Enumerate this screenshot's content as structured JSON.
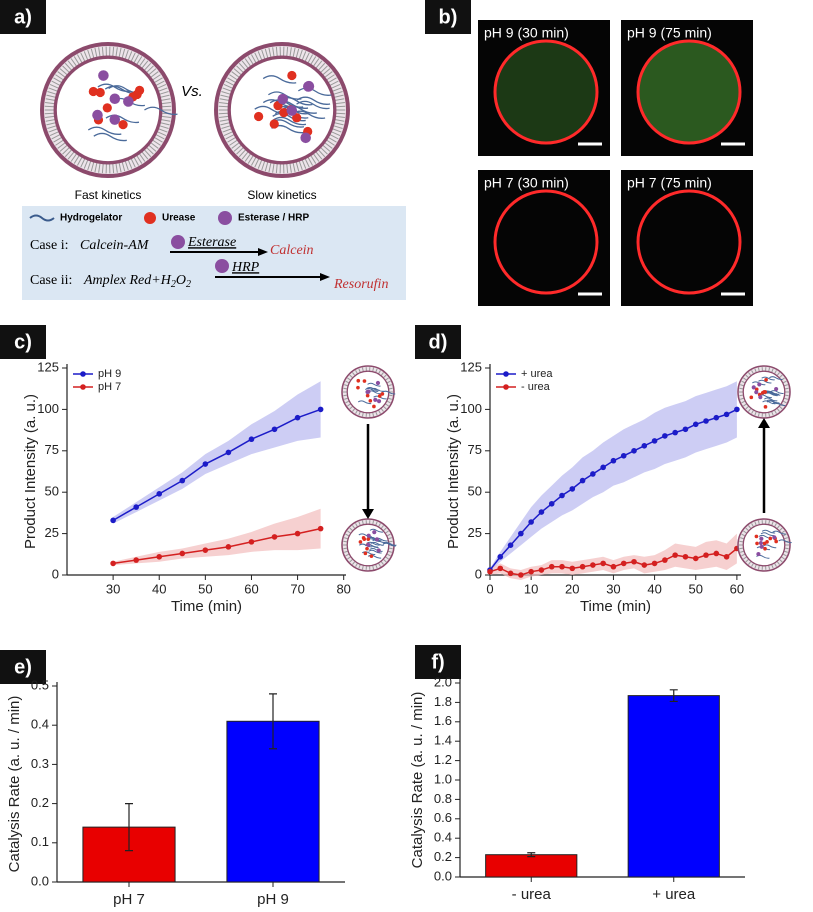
{
  "diagram": {
    "label": "a)",
    "vs": "Vs.",
    "left_caption": "Fast kinetics",
    "right_caption": "Slow kinetics",
    "legend": [
      "Hydrogelator",
      "Urease",
      "Esterase / HRP"
    ],
    "case_i": {
      "prefix": "Case i:",
      "substrate": "Calcein-AM",
      "enzyme": "Esterase",
      "product": "Calcein"
    },
    "case_ii": {
      "prefix": "Case ii:",
      "substrate_parts": [
        "Amplex Red+H",
        "2",
        "O",
        "2"
      ],
      "enzyme": "HRP",
      "product": "Resorufin"
    }
  },
  "images": {
    "label": "b)",
    "captions": [
      "pH 9 (30 min)",
      "pH 9 (75 min)",
      "pH 7 (30 min)",
      "pH 7 (75 min)"
    ]
  },
  "chart_data": [
    {
      "type": "line",
      "panel_label": "c)",
      "x_label": "Time (min)",
      "y_label": "Product Intensity (a. u.)",
      "x": [
        30,
        35,
        40,
        45,
        50,
        55,
        60,
        65,
        70,
        75
      ],
      "series": [
        {
          "name": "pH 9",
          "color": "#1c1cc8",
          "band_color": "#b8b8f0",
          "values": [
            33,
            41,
            49,
            57,
            67,
            74,
            82,
            88,
            95,
            100
          ],
          "error": [
            2,
            3,
            4,
            5,
            6,
            7,
            9,
            11,
            14,
            17
          ]
        },
        {
          "name": "pH 7",
          "color": "#d42020",
          "band_color": "#f2bcbc",
          "values": [
            7,
            9,
            11,
            13,
            15,
            17,
            20,
            23,
            25,
            28
          ],
          "error": [
            1,
            2,
            3,
            3,
            4,
            5,
            6,
            8,
            10,
            12
          ]
        }
      ],
      "xlim": [
        20,
        80.5
      ],
      "xticks": [
        30,
        40,
        50,
        60,
        70,
        80
      ],
      "ylim": [
        0,
        125
      ],
      "yticks": [
        0,
        25,
        50,
        75,
        100,
        125
      ],
      "legend": "upper-left"
    },
    {
      "type": "line",
      "panel_label": "d)",
      "x_label": "Time (min)",
      "y_label": "Product Intensity (a. u.)",
      "x": [
        0,
        2.5,
        5,
        7.5,
        10,
        12.5,
        15,
        17.5,
        20,
        22.5,
        25,
        27.5,
        30,
        32.5,
        35,
        37.5,
        40,
        42.5,
        45,
        47.5,
        50,
        52.5,
        55,
        57.5,
        60
      ],
      "series": [
        {
          "name": "+ urea",
          "color": "#1c1cc8",
          "band_color": "#b8b8f0",
          "values": [
            3,
            11,
            18,
            25,
            32,
            38,
            43,
            48,
            52,
            57,
            61,
            65,
            69,
            72,
            75,
            78,
            81,
            84,
            86,
            88,
            91,
            93,
            95,
            97,
            100
          ],
          "error": [
            1,
            3,
            5,
            7,
            9,
            10,
            11,
            12,
            13,
            14,
            14,
            15,
            15,
            16,
            16,
            16,
            17,
            17,
            17,
            17,
            17,
            17,
            17,
            17,
            17
          ]
        },
        {
          "name": "- urea",
          "color": "#d42020",
          "band_color": "#f2bcbc",
          "values": [
            2,
            4,
            1,
            0,
            2,
            3,
            5,
            5,
            4,
            5,
            6,
            7,
            5,
            7,
            8,
            6,
            7,
            9,
            12,
            11,
            10,
            12,
            13,
            11,
            16
          ],
          "error": [
            2,
            3,
            3,
            3,
            3,
            3,
            4,
            4,
            4,
            4,
            4,
            4,
            4,
            4,
            4,
            5,
            5,
            6,
            7,
            7,
            7,
            8,
            8,
            8,
            9
          ]
        }
      ],
      "xlim": [
        0,
        61
      ],
      "xticks": [
        0,
        10,
        20,
        30,
        40,
        50,
        60
      ],
      "ylim": [
        0,
        125
      ],
      "yticks": [
        0,
        25,
        50,
        75,
        100,
        125
      ],
      "legend": "upper-left"
    },
    {
      "type": "bar",
      "panel_label": "e)",
      "y_label": "Catalysis Rate (a. u. / min)",
      "categories": [
        "pH 7",
        "pH 9"
      ],
      "values": [
        0.14,
        0.41
      ],
      "error": [
        0.06,
        0.07
      ],
      "colors": [
        "#e80000",
        "#0000ff"
      ],
      "ylim": [
        0,
        0.5
      ],
      "yticks": [
        {
          "value": 0,
          "label": "0.0"
        },
        0.1,
        0.2,
        0.3,
        0.4,
        0.5
      ]
    },
    {
      "type": "bar",
      "panel_label": "f)",
      "y_label": "Catalysis Rate (a. u. / min)",
      "categories": [
        "- urea",
        "+ urea"
      ],
      "values": [
        0.23,
        1.87
      ],
      "error": [
        0.02,
        0.06
      ],
      "colors": [
        "#e80000",
        "#0000ff"
      ],
      "ylim": [
        0,
        2.0
      ],
      "yticks": [
        {
          "value": 0,
          "label": "0.0"
        },
        0.2,
        0.4,
        0.6,
        0.8,
        {
          "value": 1,
          "label": "1.0"
        },
        1.2,
        1.4,
        1.6,
        1.8,
        {
          "value": 2,
          "label": "2.0"
        }
      ]
    }
  ]
}
